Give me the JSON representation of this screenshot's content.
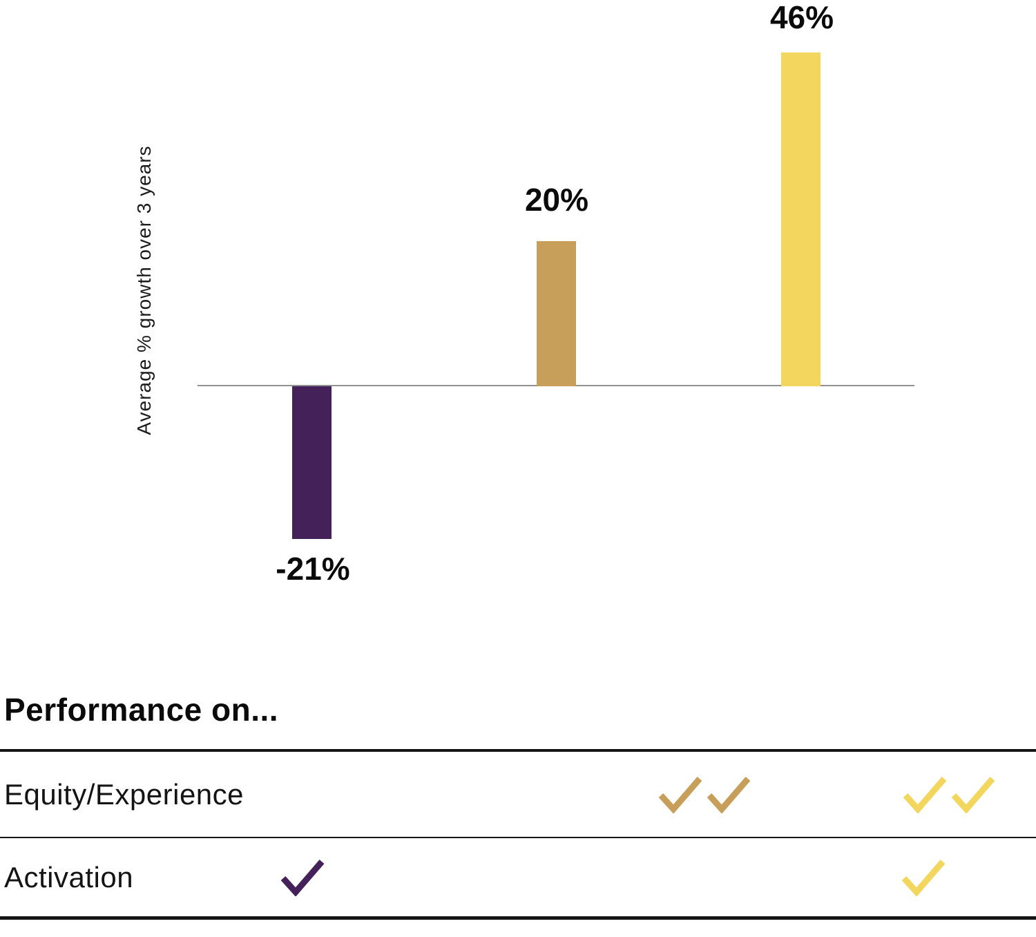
{
  "chart_data": {
    "type": "bar",
    "values": [
      -21,
      20,
      46
    ],
    "labels": [
      "-21%",
      "20%",
      "46%"
    ],
    "colors": [
      "#45215A",
      "#C89F5A",
      "#F3D65E"
    ],
    "title": "",
    "xlabel": "",
    "ylabel": "Average % growth over 3 years",
    "baseline": 0,
    "grid": false,
    "legend": false,
    "axis_tick_labels": false
  },
  "colors": {
    "purple": "#45215A",
    "tan": "#C89F5A",
    "yellow": "#F3D65E",
    "axis_line": "#919191",
    "table_line": "#141414",
    "text": "#0b0b0b"
  },
  "table": {
    "heading": "Performance on...",
    "rows": [
      {
        "label": "Equity/Experience",
        "checks": [
          {
            "column": "middle-bar",
            "count": 2,
            "color_name": "tan"
          },
          {
            "column": "right-bar",
            "count": 2,
            "color_name": "yellow"
          }
        ]
      },
      {
        "label": "Activation",
        "checks": [
          {
            "column": "left-bar",
            "count": 1,
            "color_name": "purple"
          },
          {
            "column": "right-bar",
            "count": 1,
            "color_name": "yellow"
          }
        ]
      }
    ]
  }
}
